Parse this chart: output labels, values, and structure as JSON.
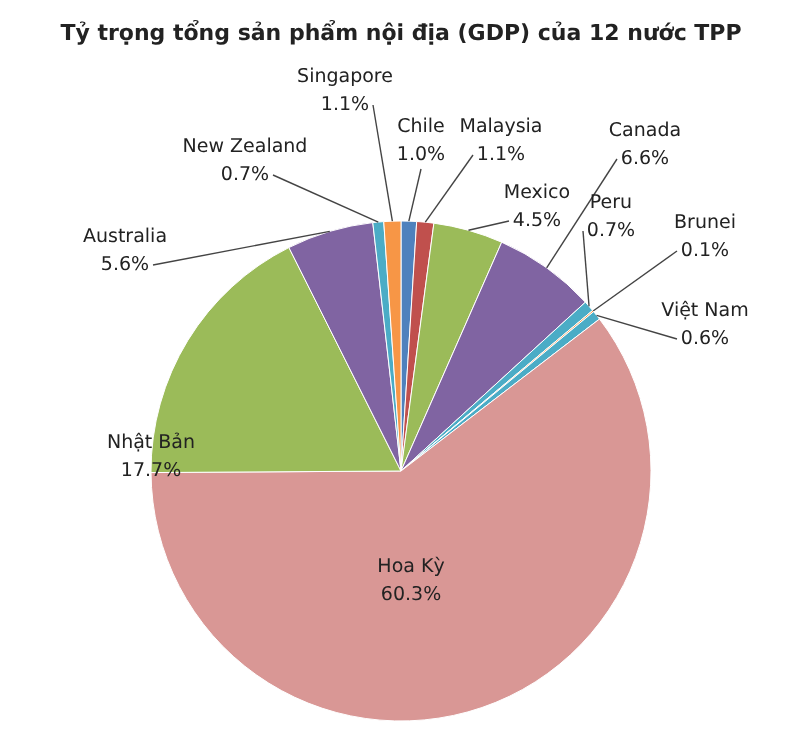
{
  "chart_data": {
    "type": "pie",
    "title": "Tỷ trọng tổng sản phẩm nội địa (GDP) của 12 nước TPP",
    "categories": [
      "Chile",
      "Malaysia",
      "Mexico",
      "Canada",
      "Peru",
      "Brunei",
      "Việt Nam",
      "Hoa Kỳ",
      "Nhật Bản",
      "Australia",
      "New Zealand",
      "Singapore"
    ],
    "values": [
      1.0,
      1.1,
      4.5,
      6.6,
      0.7,
      0.1,
      0.6,
      60.3,
      17.7,
      5.6,
      0.7,
      1.1
    ],
    "value_labels": [
      "1.0%",
      "1.1%",
      "4.5%",
      "6.6%",
      "0.7%",
      "0.1%",
      "0.6%",
      "60.3%",
      "17.7%",
      "5.6%",
      "0.7%",
      "1.1%"
    ],
    "colors": [
      "#4f81bd",
      "#c0504d",
      "#9bbb59",
      "#8064a2",
      "#4bacc6",
      "#f79646",
      "#4bacc6",
      "#d99795",
      "#9bbb59",
      "#8064a2",
      "#4bacc6",
      "#f79646"
    ]
  }
}
